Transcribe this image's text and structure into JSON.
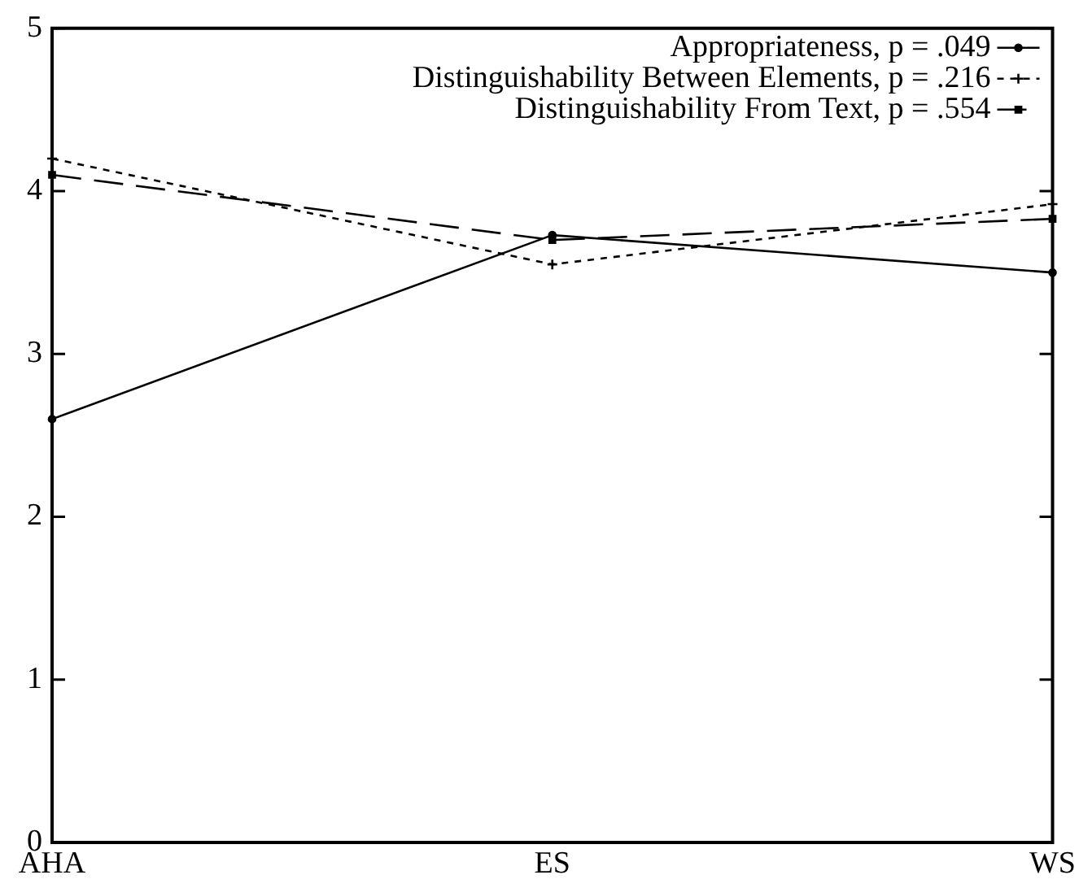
{
  "chart_data": {
    "type": "line",
    "categories": [
      "AHA",
      "ES",
      "WS"
    ],
    "series": [
      {
        "name": "Appropriateness, p = .049",
        "color": "#000000",
        "values": [
          2.6,
          3.73,
          3.5
        ],
        "marker": "circle",
        "line_style": "solid"
      },
      {
        "name": "Distinguishability Between Elements, p = .216",
        "color": "#000000",
        "values": [
          4.2,
          3.55,
          3.92
        ],
        "marker": "cross",
        "line_style": "dotted"
      },
      {
        "name": "Distinguishability From Text, p = .554",
        "color": "#000000",
        "values": [
          4.1,
          3.7,
          3.83
        ],
        "marker": "square",
        "line_style": "dashed"
      }
    ],
    "ylim": [
      0,
      5
    ],
    "yticks": [
      0,
      1,
      2,
      3,
      4,
      5
    ],
    "grid": false,
    "legend": "top right"
  }
}
